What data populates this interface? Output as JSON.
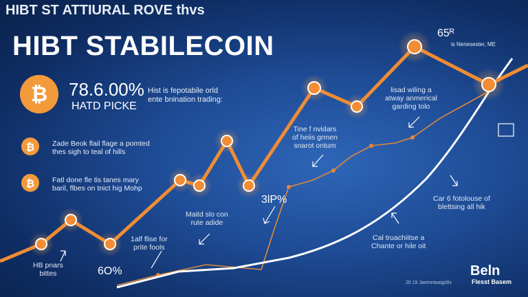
{
  "header": {
    "subtitle": "HIBT ST ATTIURAL ROVE thvs",
    "title": "HIBT STABILECOIN"
  },
  "stat": {
    "value": "78.6.00%",
    "label": "HATD PICKE",
    "description": [
      "Hist is fepotabile orld",
      "ente bnination trading:"
    ]
  },
  "bullets": [
    [
      "Zade Beok flail flage a pomted",
      "thes sigh to teal of hills"
    ],
    [
      "Fatl done fle tis tanes mary",
      "baril, flbes on tnict hig Mohp"
    ]
  ],
  "corner": {
    "value": "65ᴿ",
    "note": "is Nenesester, ME"
  },
  "annotations": [
    [
      "lisad wiling a",
      "atway anmerical",
      "garding tolo"
    ],
    [
      "Tine f nvidars",
      "of heiis grmen",
      "snarot ontum"
    ],
    "3lP%",
    [
      "Maitd slo con",
      "rute adide"
    ],
    [
      "1alf flise for",
      "prite fools"
    ],
    [
      "Car 6 fotolouse of",
      "blettsing all hik"
    ],
    [
      "Cal truachiitse a",
      "Chante or hile oit"
    ],
    [
      "HB pnars",
      "bittes"
    ],
    "6O%"
  ],
  "footer": {
    "note": "20 15 Jarenntaaig/dis",
    "logo": "Beln",
    "tagline": "Flesst Basem"
  }
}
